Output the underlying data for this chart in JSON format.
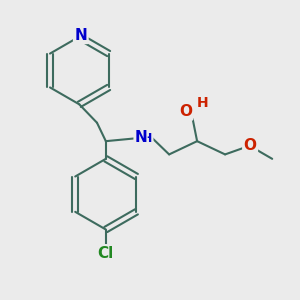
{
  "bg_color": "#ebebeb",
  "bond_color": "#3d6b5e",
  "bond_width": 1.5,
  "N_color": "#0000cc",
  "O_color": "#cc2200",
  "Cl_color": "#228822",
  "fig_width": 3.0,
  "fig_height": 3.0,
  "dpi": 100,
  "xlim": [
    0,
    10
  ],
  "ylim": [
    0,
    10
  ]
}
